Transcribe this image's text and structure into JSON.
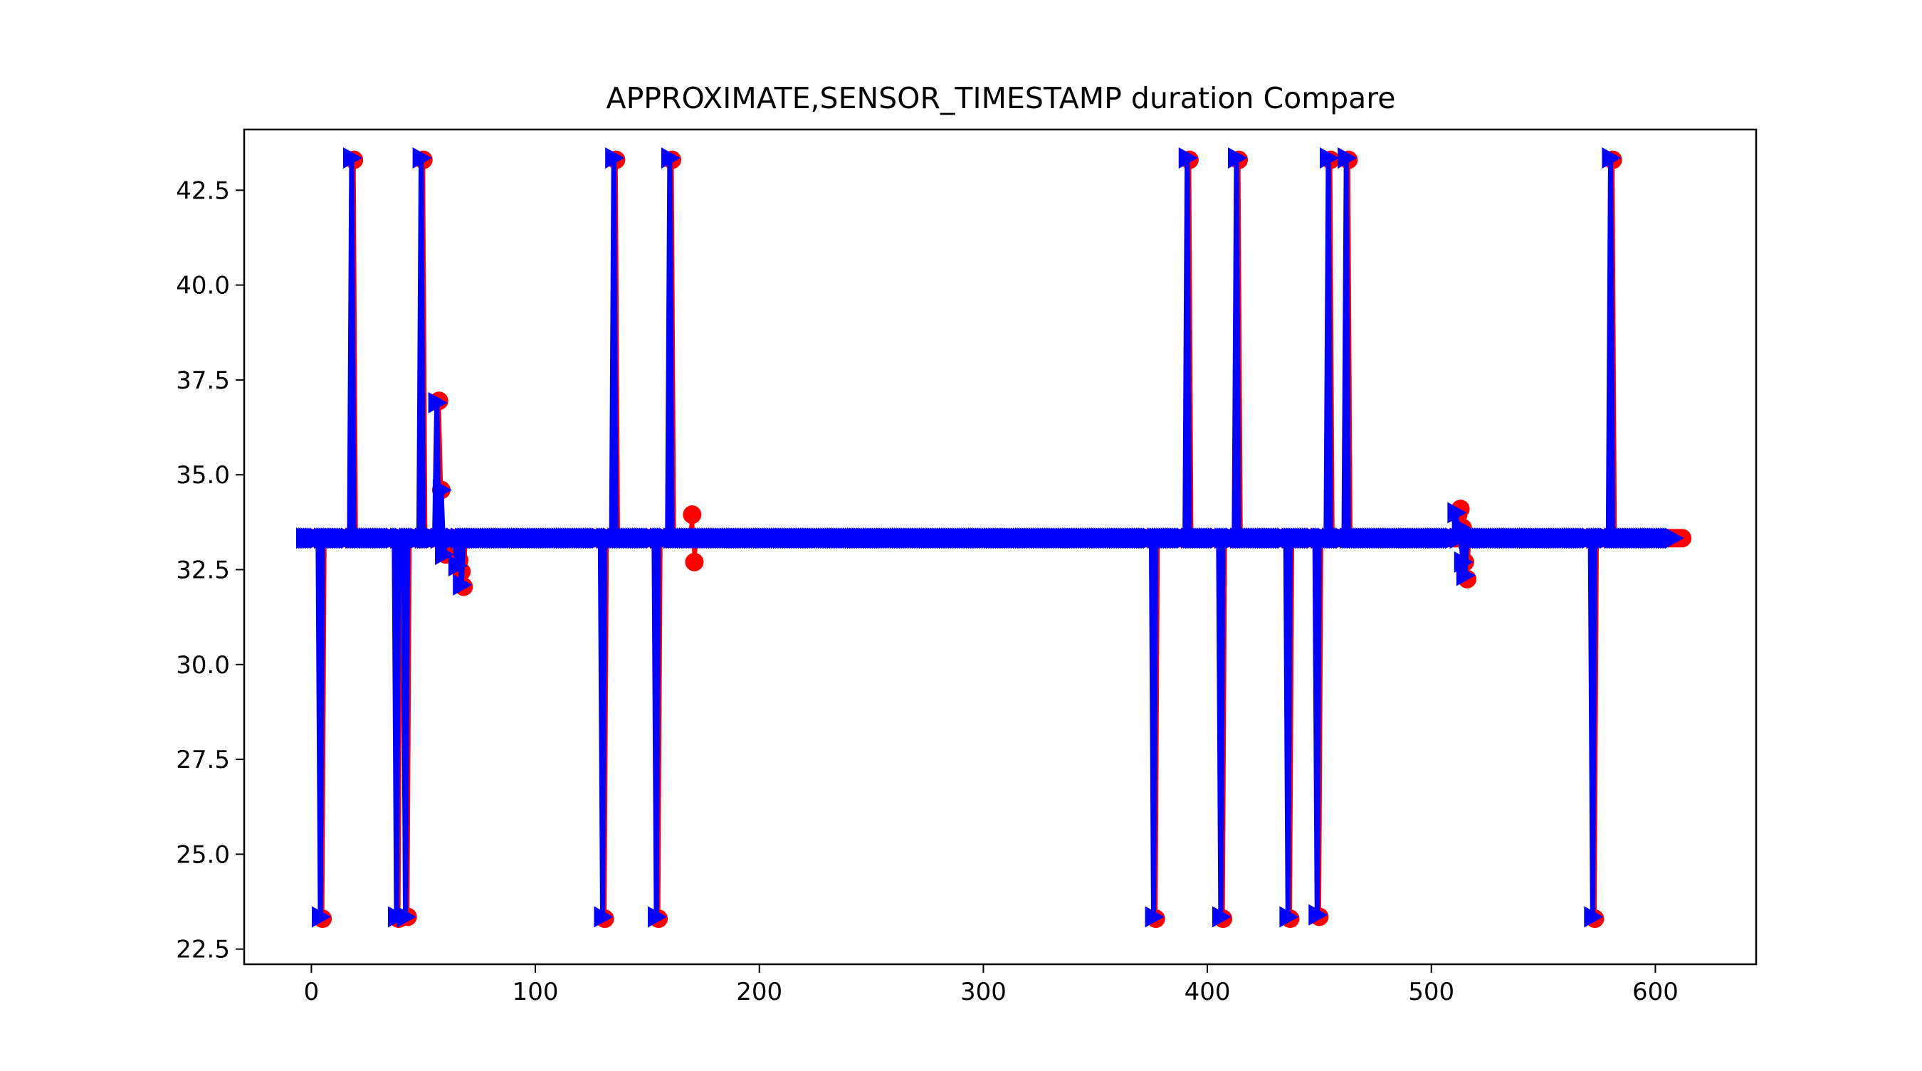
{
  "chart_data": {
    "type": "line",
    "title": "APPROXIMATE,SENSOR_TIMESTAMP duration Compare",
    "xlabel": "",
    "ylabel": "",
    "xlim": [
      -30,
      645
    ],
    "ylim": [
      22.1,
      44.1
    ],
    "x_ticks": [
      0,
      100,
      200,
      300,
      400,
      500,
      600
    ],
    "x_tick_labels": [
      "0",
      "100",
      "200",
      "300",
      "400",
      "500",
      "600"
    ],
    "y_ticks": [
      22.5,
      25.0,
      27.5,
      30.0,
      32.5,
      35.0,
      37.5,
      40.0,
      42.5
    ],
    "y_tick_labels": [
      "22.5",
      "25.0",
      "27.5",
      "30.0",
      "32.5",
      "35.0",
      "37.5",
      "40.0",
      "42.5"
    ],
    "grid": false,
    "baseline": 33.33,
    "series": [
      {
        "color": "#ff0000",
        "marker": "circle",
        "line": true,
        "x_range": [
          0,
          612
        ],
        "exceptions": [
          {
            "x": 5,
            "y": 23.3
          },
          {
            "x": 19,
            "y": 43.3
          },
          {
            "x": 39,
            "y": 23.3
          },
          {
            "x": 43,
            "y": 23.35
          },
          {
            "x": 50,
            "y": 43.3
          },
          {
            "x": 57,
            "y": 36.95
          },
          {
            "x": 58,
            "y": 34.6
          },
          {
            "x": 60,
            "y": 32.9
          },
          {
            "x": 62,
            "y": 33.3
          },
          {
            "x": 66,
            "y": 32.75
          },
          {
            "x": 67,
            "y": 32.45
          },
          {
            "x": 68,
            "y": 32.05
          },
          {
            "x": 131,
            "y": 23.3
          },
          {
            "x": 136,
            "y": 43.3
          },
          {
            "x": 155,
            "y": 23.3
          },
          {
            "x": 161,
            "y": 43.3
          },
          {
            "x": 170,
            "y": 33.95
          },
          {
            "x": 171,
            "y": 32.7
          },
          {
            "x": 377,
            "y": 23.3
          },
          {
            "x": 392,
            "y": 43.3
          },
          {
            "x": 407,
            "y": 23.3
          },
          {
            "x": 414,
            "y": 43.3
          },
          {
            "x": 437,
            "y": 23.3
          },
          {
            "x": 450,
            "y": 23.35
          },
          {
            "x": 455,
            "y": 43.3
          },
          {
            "x": 463,
            "y": 43.3
          },
          {
            "x": 512,
            "y": 33.95
          },
          {
            "x": 513,
            "y": 34.1
          },
          {
            "x": 514,
            "y": 33.6
          },
          {
            "x": 515,
            "y": 32.7
          },
          {
            "x": 516,
            "y": 32.25
          },
          {
            "x": 573,
            "y": 23.3
          },
          {
            "x": 581,
            "y": 43.3
          }
        ]
      },
      {
        "color": "#0000ff",
        "marker": "triangle-right",
        "line": true,
        "x_range": [
          -3,
          608
        ],
        "exceptions": [
          {
            "x": 4,
            "y": 23.35
          },
          {
            "x": 18,
            "y": 43.35
          },
          {
            "x": 38,
            "y": 23.35
          },
          {
            "x": 42,
            "y": 23.35
          },
          {
            "x": 49,
            "y": 43.35
          },
          {
            "x": 56,
            "y": 36.9
          },
          {
            "x": 58,
            "y": 34.6
          },
          {
            "x": 59,
            "y": 32.9
          },
          {
            "x": 65,
            "y": 32.6
          },
          {
            "x": 67,
            "y": 32.1
          },
          {
            "x": 130,
            "y": 23.35
          },
          {
            "x": 135,
            "y": 43.35
          },
          {
            "x": 154,
            "y": 23.35
          },
          {
            "x": 160,
            "y": 43.35
          },
          {
            "x": 376,
            "y": 23.35
          },
          {
            "x": 391,
            "y": 43.35
          },
          {
            "x": 406,
            "y": 23.35
          },
          {
            "x": 413,
            "y": 43.35
          },
          {
            "x": 436,
            "y": 23.35
          },
          {
            "x": 449,
            "y": 23.4
          },
          {
            "x": 454,
            "y": 43.35
          },
          {
            "x": 462,
            "y": 43.35
          },
          {
            "x": 511,
            "y": 34.0
          },
          {
            "x": 513,
            "y": 33.6
          },
          {
            "x": 514,
            "y": 32.7
          },
          {
            "x": 515,
            "y": 32.35
          },
          {
            "x": 572,
            "y": 23.35
          },
          {
            "x": 580,
            "y": 43.35
          }
        ]
      }
    ]
  }
}
